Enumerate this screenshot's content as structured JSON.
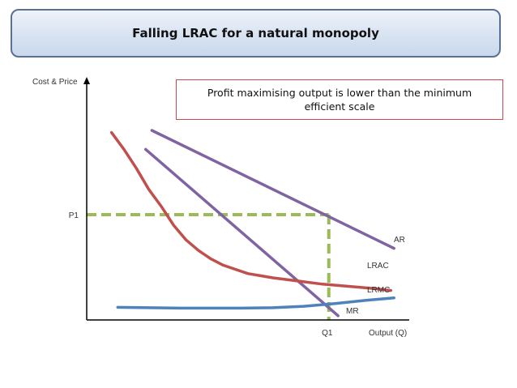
{
  "title": "Falling LRAC for a natural monopoly",
  "annotation": "Profit maximising output is lower than the minimum efficient scale",
  "colors": {
    "lrac": "#c0504d",
    "lrmc": "#4f81bd",
    "ar": "#8064a2",
    "mr": "#8064a2",
    "guide": "#9bbb59"
  },
  "chart_data": {
    "type": "line",
    "title": "Falling LRAC for a natural monopoly",
    "xlabel": "Output (Q)",
    "ylabel": "Cost & Price",
    "xlim": [
      0,
      100
    ],
    "ylim": [
      0,
      100
    ],
    "grid": false,
    "x_tick_labels": [
      {
        "x": 78,
        "label": "Q1"
      }
    ],
    "y_tick_labels": [
      {
        "y": 50,
        "label": "P1"
      }
    ],
    "series": [
      {
        "name": "AR",
        "points": [
          [
            21,
            90
          ],
          [
            99,
            34
          ]
        ]
      },
      {
        "name": "MR",
        "points": [
          [
            19,
            81
          ],
          [
            81,
            2
          ]
        ]
      },
      {
        "name": "LRAC",
        "points": [
          [
            8,
            89
          ],
          [
            12,
            81
          ],
          [
            16,
            72
          ],
          [
            20,
            62
          ],
          [
            24,
            54
          ],
          [
            28,
            45
          ],
          [
            32,
            38
          ],
          [
            36,
            33
          ],
          [
            40,
            29
          ],
          [
            44,
            26
          ],
          [
            48,
            24
          ],
          [
            52,
            22
          ],
          [
            56,
            21
          ],
          [
            60,
            20
          ],
          [
            68,
            18.5
          ],
          [
            76,
            17
          ],
          [
            84,
            16
          ],
          [
            92,
            15
          ],
          [
            98,
            14
          ]
        ]
      },
      {
        "name": "LRMC",
        "points": [
          [
            10,
            6
          ],
          [
            30,
            5.6
          ],
          [
            50,
            5.6
          ],
          [
            60,
            5.8
          ],
          [
            70,
            6.5
          ],
          [
            80,
            7.8
          ],
          [
            90,
            9.3
          ],
          [
            99,
            10.5
          ]
        ]
      }
    ],
    "guides": [
      {
        "from": [
          0,
          50
        ],
        "to": [
          78,
          50
        ]
      },
      {
        "from": [
          78,
          50
        ],
        "to": [
          78,
          0
        ]
      }
    ]
  }
}
